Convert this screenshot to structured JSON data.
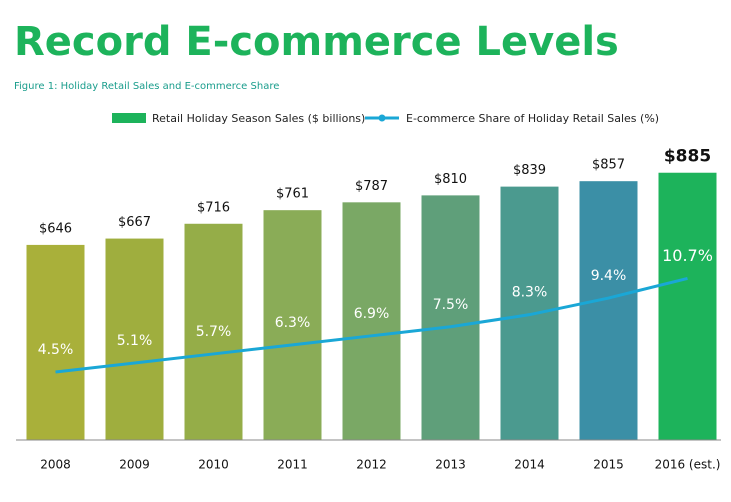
{
  "chart_data": {
    "type": "bar_line",
    "title": "Record E-commerce Levels",
    "subtitle": "Figure 1: Holiday Retail Sales and E-commerce Share",
    "categories": [
      "2008",
      "2009",
      "2010",
      "2011",
      "2012",
      "2013",
      "2014",
      "2015",
      "2016 (est.)"
    ],
    "series": [
      {
        "name": "Retail Holiday Season Sales ($ billions)",
        "type": "bar",
        "color": "#1db35b",
        "colors": [
          "#a9b03a",
          "#9fae3e",
          "#95ad48",
          "#8aac57",
          "#7aa865",
          "#5f9f7a",
          "#4b9a8f",
          "#3b8fa6",
          "#1db35b"
        ],
        "values": [
          646,
          667,
          716,
          761,
          787,
          810,
          839,
          857,
          885
        ],
        "value_labels": [
          "$646",
          "$667",
          "$716",
          "$761",
          "$787",
          "$810",
          "$839",
          "$857",
          "$885"
        ]
      },
      {
        "name": "E-commerce Share of Holiday Retail Sales (%)",
        "type": "line",
        "axis": "y2",
        "color": "#1aa7d6",
        "values": [
          4.5,
          5.1,
          5.7,
          6.3,
          6.9,
          7.5,
          8.3,
          9.4,
          10.7
        ],
        "value_labels": [
          "4.5%",
          "5.1%",
          "5.7%",
          "6.3%",
          "6.9%",
          "7.5%",
          "8.3%",
          "9.4%",
          "10.7%"
        ]
      }
    ],
    "ylim": [
      0,
      1000
    ],
    "y2lim": [
      0,
      20
    ],
    "legend": "top"
  }
}
